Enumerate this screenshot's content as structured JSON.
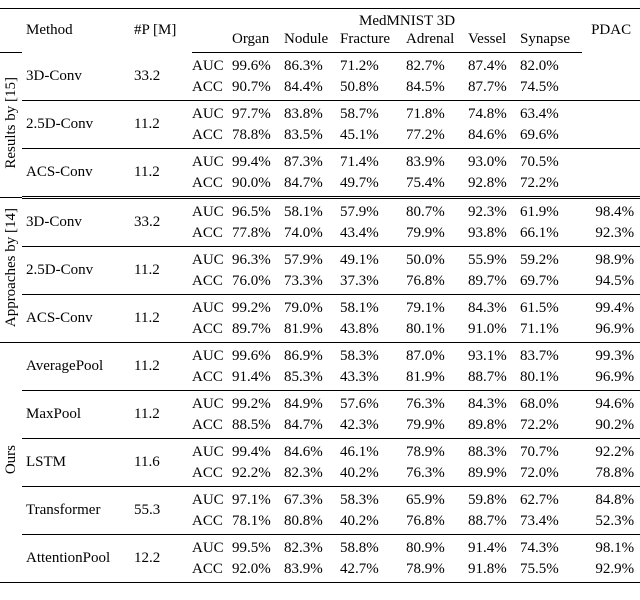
{
  "table": {
    "header": {
      "method": "Method",
      "params": "#P [M]",
      "group": "MedMNIST 3D",
      "columns": [
        "Organ",
        "Nodule",
        "Fracture",
        "Adrenal",
        "Vessel",
        "Synapse"
      ],
      "pdac": "PDAC"
    },
    "groups": [
      {
        "label": "Results by [15]",
        "rows": [
          {
            "method": "3D-Conv",
            "params": "33.2",
            "metrics": [
              {
                "name": "AUC",
                "values": [
                  "99.6%",
                  "86.3%",
                  "71.2%",
                  "82.7%",
                  "87.4%",
                  "82.0%"
                ]
              },
              {
                "name": "ACC",
                "values": [
                  "90.7%",
                  "84.4%",
                  "50.8%",
                  "84.5%",
                  "87.7%",
                  "74.5%"
                ]
              }
            ]
          },
          {
            "method": "2.5D-Conv",
            "params": "11.2",
            "metrics": [
              {
                "name": "AUC",
                "values": [
                  "97.7%",
                  "83.8%",
                  "58.7%",
                  "71.8%",
                  "74.8%",
                  "63.4%"
                ]
              },
              {
                "name": "ACC",
                "values": [
                  "78.8%",
                  "83.5%",
                  "45.1%",
                  "77.2%",
                  "84.6%",
                  "69.6%"
                ]
              }
            ]
          },
          {
            "method": "ACS-Conv",
            "params": "11.2",
            "metrics": [
              {
                "name": "AUC",
                "values": [
                  "99.4%",
                  "87.3%",
                  "71.4%",
                  "83.9%",
                  "93.0%",
                  "70.5%"
                ]
              },
              {
                "name": "ACC",
                "values": [
                  "90.0%",
                  "84.7%",
                  "49.7%",
                  "75.4%",
                  "92.8%",
                  "72.2%"
                ]
              }
            ]
          }
        ]
      },
      {
        "label": "Approaches by [14]",
        "rows": [
          {
            "method": "3D-Conv",
            "params": "33.2",
            "metrics": [
              {
                "name": "AUC",
                "values": [
                  "96.5%",
                  "58.1%",
                  "57.9%",
                  "80.7%",
                  "92.3%",
                  "61.9%"
                ],
                "pdac": "98.4%"
              },
              {
                "name": "ACC",
                "values": [
                  "77.8%",
                  "74.0%",
                  "43.4%",
                  "79.9%",
                  "93.8%",
                  "66.1%"
                ],
                "pdac": "92.3%"
              }
            ]
          },
          {
            "method": "2.5D-Conv",
            "params": "11.2",
            "metrics": [
              {
                "name": "AUC",
                "values": [
                  "96.3%",
                  "57.9%",
                  "49.1%",
                  "50.0%",
                  "55.9%",
                  "59.2%"
                ],
                "pdac": "98.9%"
              },
              {
                "name": "ACC",
                "values": [
                  "76.0%",
                  "73.3%",
                  "37.3%",
                  "76.8%",
                  "89.7%",
                  "69.7%"
                ],
                "pdac": "94.5%"
              }
            ]
          },
          {
            "method": "ACS-Conv",
            "params": "11.2",
            "metrics": [
              {
                "name": "AUC",
                "values": [
                  "99.2%",
                  "79.0%",
                  "58.1%",
                  "79.1%",
                  "84.3%",
                  "61.5%"
                ],
                "pdac": "99.4%"
              },
              {
                "name": "ACC",
                "values": [
                  "89.7%",
                  "81.9%",
                  "43.8%",
                  "80.1%",
                  "91.0%",
                  "71.1%"
                ],
                "pdac": "96.9%"
              }
            ]
          }
        ]
      },
      {
        "label": "Ours",
        "rows": [
          {
            "method": "AveragePool",
            "params": "11.2",
            "metrics": [
              {
                "name": "AUC",
                "values": [
                  "99.6%",
                  "86.9%",
                  "58.3%",
                  "87.0%",
                  "93.1%",
                  "83.7%"
                ],
                "pdac": "99.3%"
              },
              {
                "name": "ACC",
                "values": [
                  "91.4%",
                  "85.3%",
                  "43.3%",
                  "81.9%",
                  "88.7%",
                  "80.1%"
                ],
                "pdac": "96.9%"
              }
            ]
          },
          {
            "method": "MaxPool",
            "params": "11.2",
            "metrics": [
              {
                "name": "AUC",
                "values": [
                  "99.2%",
                  "84.9%",
                  "57.6%",
                  "76.3%",
                  "84.3%",
                  "68.0%"
                ],
                "pdac": "94.6%"
              },
              {
                "name": "ACC",
                "values": [
                  "88.5%",
                  "84.7%",
                  "42.3%",
                  "79.9%",
                  "89.8%",
                  "72.2%"
                ],
                "pdac": "90.2%"
              }
            ]
          },
          {
            "method": "LSTM",
            "params": "11.6",
            "metrics": [
              {
                "name": "AUC",
                "values": [
                  "99.4%",
                  "84.6%",
                  "46.1%",
                  "78.9%",
                  "88.3%",
                  "70.7%"
                ],
                "pdac": "92.2%"
              },
              {
                "name": "ACC",
                "values": [
                  "92.2%",
                  "82.3%",
                  "40.2%",
                  "76.3%",
                  "89.9%",
                  "72.0%"
                ],
                "pdac": "78.8%"
              }
            ]
          },
          {
            "method": "Transformer",
            "params": "55.3",
            "metrics": [
              {
                "name": "AUC",
                "values": [
                  "97.1%",
                  "67.3%",
                  "58.3%",
                  "65.9%",
                  "59.8%",
                  "62.7%"
                ],
                "pdac": "84.8%"
              },
              {
                "name": "ACC",
                "values": [
                  "78.1%",
                  "80.8%",
                  "40.2%",
                  "76.8%",
                  "88.7%",
                  "73.4%"
                ],
                "pdac": "52.3%"
              }
            ]
          },
          {
            "method": "AttentionPool",
            "params": "12.2",
            "metrics": [
              {
                "name": "AUC",
                "values": [
                  "99.5%",
                  "82.3%",
                  "58.8%",
                  "80.9%",
                  "91.4%",
                  "74.3%"
                ],
                "pdac": "98.1%"
              },
              {
                "name": "ACC",
                "values": [
                  "92.0%",
                  "83.9%",
                  "42.7%",
                  "78.9%",
                  "91.8%",
                  "75.5%"
                ],
                "pdac": "92.9%"
              }
            ]
          }
        ]
      }
    ]
  }
}
